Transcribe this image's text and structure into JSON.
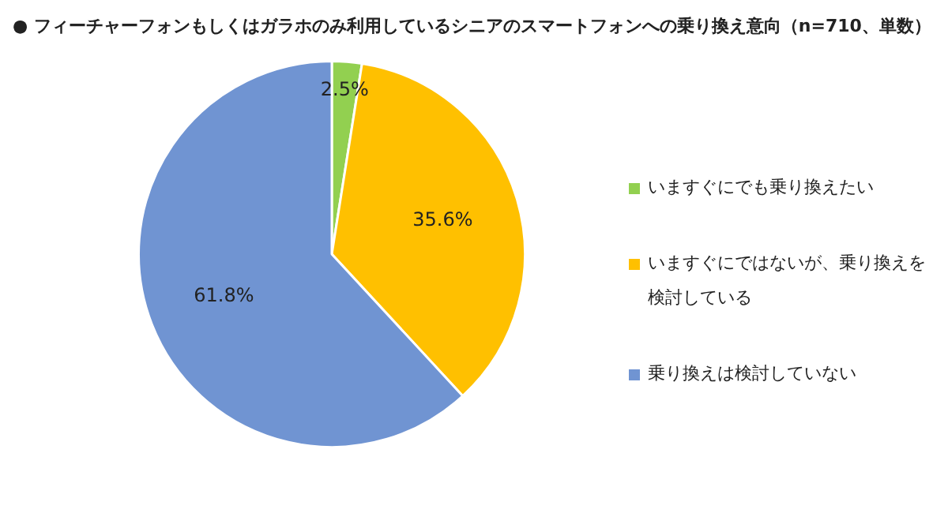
{
  "chart_data": {
    "type": "pie",
    "title": "● フィーチャーフォンもしくはガラホのみ利用しているシニアのスマートフォンへの乗り換え意向（n=710、単数）",
    "categories": [
      "いますぐにでも乗り換えたい",
      "いますぐにではないが、乗り換えを検討している",
      "乗り換えは検討していない"
    ],
    "values": [
      2.5,
      35.6,
      61.8
    ],
    "value_labels": [
      "2.5%",
      "35.6%",
      "61.8%"
    ],
    "colors": [
      "#92d050",
      "#ffc000",
      "#7094d2"
    ],
    "legend": "right"
  }
}
